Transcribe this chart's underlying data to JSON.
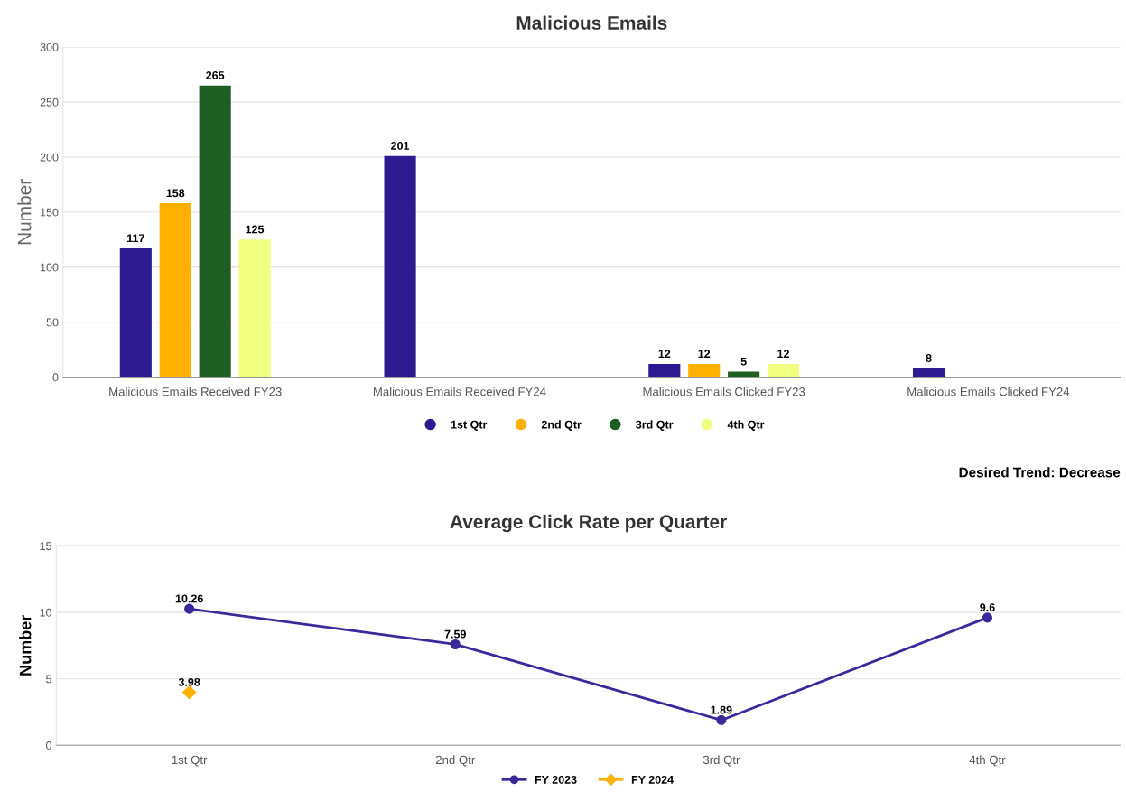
{
  "chart_data": [
    {
      "type": "bar",
      "title": "Malicious Emails",
      "ylabel": "Number",
      "categories": [
        "Malicious Emails Received FY23",
        "Malicious Emails Received FY24",
        "Malicious Emails Clicked FY23",
        "Malicious Emails Clicked FY24"
      ],
      "series": [
        {
          "name": "1st Qtr",
          "color": "#2f1b91",
          "values": [
            117,
            201,
            12,
            8
          ]
        },
        {
          "name": "2nd Qtr",
          "color": "#ffb000",
          "values": [
            158,
            null,
            12,
            null
          ]
        },
        {
          "name": "3rd Qtr",
          "color": "#1e5e20",
          "values": [
            265,
            null,
            5,
            null
          ]
        },
        {
          "name": "4th Qtr",
          "color": "#f0ff80",
          "values": [
            125,
            null,
            12,
            null
          ]
        }
      ],
      "ylim": [
        0,
        300
      ],
      "yticks": [
        0,
        50,
        100,
        150,
        200,
        250,
        300
      ],
      "grid": "y",
      "legend": "bottom",
      "data_labels": true
    },
    {
      "type": "line",
      "title": "Average Click Rate per Quarter",
      "ylabel": "Number",
      "annotations": [
        "Desired Trend: Decrease"
      ],
      "categories": [
        "1st Qtr",
        "2nd Qtr",
        "3rd Qtr",
        "4th Qtr"
      ],
      "series": [
        {
          "name": "FY 2023",
          "color": "#3a2a9c",
          "marker": "circle",
          "values": [
            10.26,
            7.59,
            1.89,
            9.6
          ]
        },
        {
          "name": "FY 2024",
          "color": "#ffb000",
          "marker": "diamond",
          "values": [
            3.98,
            null,
            null,
            null
          ]
        }
      ],
      "ylim": [
        0,
        15
      ],
      "yticks": [
        0,
        5,
        10,
        15
      ],
      "grid": "y",
      "legend": "bottom",
      "data_labels": true
    }
  ]
}
